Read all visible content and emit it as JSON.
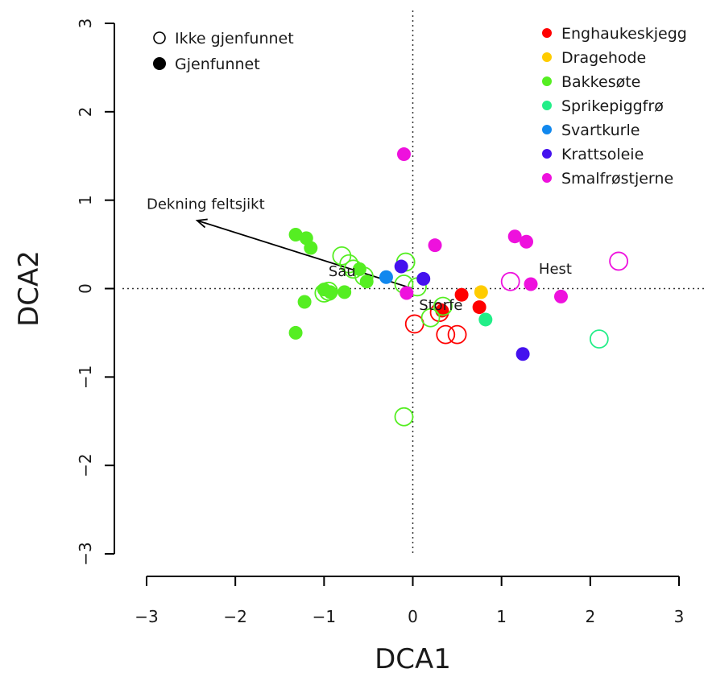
{
  "chart_data": {
    "type": "scatter",
    "xlabel": "DCA1",
    "ylabel": "DCA2",
    "xlim": [
      -3,
      3
    ],
    "ylim": [
      -3,
      3
    ],
    "xticks": [
      -3,
      -2,
      -1,
      0,
      1,
      2,
      3
    ],
    "yticks": [
      -3,
      -2,
      -1,
      0,
      1,
      2,
      3
    ],
    "grid": false,
    "reference_lines": {
      "x": 0,
      "y": 0,
      "style": "dotted"
    },
    "status_legend": {
      "placement": "top-left",
      "entries": [
        {
          "label": "Ikke gjenfunnet",
          "style": "open"
        },
        {
          "label": "Gjenfunnet",
          "style": "filled"
        }
      ]
    },
    "species_legend": {
      "placement": "top-right"
    },
    "series": [
      {
        "name": "Enghaukeskjegg",
        "color": "#ff0000",
        "points": [
          {
            "x": 0.55,
            "y": -0.07,
            "found": true
          },
          {
            "x": 0.75,
            "y": -0.21,
            "found": true
          },
          {
            "x": 0.33,
            "y": -0.25,
            "found": true
          },
          {
            "x": 0.02,
            "y": -0.4,
            "found": false
          },
          {
            "x": 0.37,
            "y": -0.52,
            "found": false
          },
          {
            "x": 0.5,
            "y": -0.52,
            "found": false
          },
          {
            "x": 0.3,
            "y": -0.27,
            "found": false
          }
        ]
      },
      {
        "name": "Dragehode",
        "color": "#ffcc00",
        "points": [
          {
            "x": 0.77,
            "y": -0.04,
            "found": true
          }
        ]
      },
      {
        "name": "Bakkesøte",
        "color": "#55ee22",
        "points": [
          {
            "x": -1.32,
            "y": 0.61,
            "found": true
          },
          {
            "x": -1.2,
            "y": 0.57,
            "found": true
          },
          {
            "x": -1.15,
            "y": 0.46,
            "found": true
          },
          {
            "x": -0.6,
            "y": 0.22,
            "found": true
          },
          {
            "x": -0.52,
            "y": 0.08,
            "found": true
          },
          {
            "x": -0.77,
            "y": -0.04,
            "found": true
          },
          {
            "x": -0.93,
            "y": -0.04,
            "found": true
          },
          {
            "x": -1.0,
            "y": -0.01,
            "found": true
          },
          {
            "x": -1.22,
            "y": -0.15,
            "found": true
          },
          {
            "x": -1.32,
            "y": -0.5,
            "found": true
          },
          {
            "x": -0.8,
            "y": 0.37,
            "found": false
          },
          {
            "x": -0.72,
            "y": 0.28,
            "found": false
          },
          {
            "x": -0.67,
            "y": 0.22,
            "found": false
          },
          {
            "x": -0.55,
            "y": 0.14,
            "found": false
          },
          {
            "x": -0.95,
            "y": -0.03,
            "found": false
          },
          {
            "x": -1.0,
            "y": -0.05,
            "found": false
          },
          {
            "x": -0.08,
            "y": 0.3,
            "found": false
          },
          {
            "x": -0.1,
            "y": 0.05,
            "found": false
          },
          {
            "x": 0.05,
            "y": 0.02,
            "found": false
          },
          {
            "x": 0.2,
            "y": -0.33,
            "found": false
          },
          {
            "x": 0.34,
            "y": -0.2,
            "found": false
          },
          {
            "x": -0.1,
            "y": -1.45,
            "found": false
          }
        ]
      },
      {
        "name": "Sprikepiggfrø",
        "color": "#22ee88",
        "points": [
          {
            "x": 0.82,
            "y": -0.35,
            "found": true
          },
          {
            "x": 2.1,
            "y": -0.57,
            "found": false
          }
        ]
      },
      {
        "name": "Svartkurle",
        "color": "#1188ee",
        "points": [
          {
            "x": -0.3,
            "y": 0.13,
            "found": true
          }
        ]
      },
      {
        "name": "Krattsoleie",
        "color": "#4411ee",
        "points": [
          {
            "x": -0.13,
            "y": 0.25,
            "found": true
          },
          {
            "x": 0.12,
            "y": 0.11,
            "found": true
          },
          {
            "x": 1.24,
            "y": -0.74,
            "found": true
          }
        ]
      },
      {
        "name": "Smalfrøstjerne",
        "color": "#ee11dd",
        "points": [
          {
            "x": -0.1,
            "y": 1.52,
            "found": true
          },
          {
            "x": 0.25,
            "y": 0.49,
            "found": true
          },
          {
            "x": 1.15,
            "y": 0.59,
            "found": true
          },
          {
            "x": 1.28,
            "y": 0.53,
            "found": true
          },
          {
            "x": 1.33,
            "y": 0.05,
            "found": true
          },
          {
            "x": 1.67,
            "y": -0.09,
            "found": true
          },
          {
            "x": -0.07,
            "y": -0.05,
            "found": true
          },
          {
            "x": 1.1,
            "y": 0.08,
            "found": false
          },
          {
            "x": 2.32,
            "y": 0.31,
            "found": false
          }
        ]
      }
    ],
    "arrows": [
      {
        "label": "Dekning feltsjikt",
        "from": [
          0,
          0
        ],
        "to": [
          -2.43,
          0.77
        ]
      }
    ],
    "annotations": [
      {
        "text": "Sau",
        "x": -0.95,
        "y": 0.14
      },
      {
        "text": "Storfe",
        "x": 0.07,
        "y": -0.24
      },
      {
        "text": "Hest",
        "x": 1.42,
        "y": 0.17
      },
      {
        "text": "Dekning feltsjikt",
        "x": -3.0,
        "y": 0.9
      }
    ]
  }
}
